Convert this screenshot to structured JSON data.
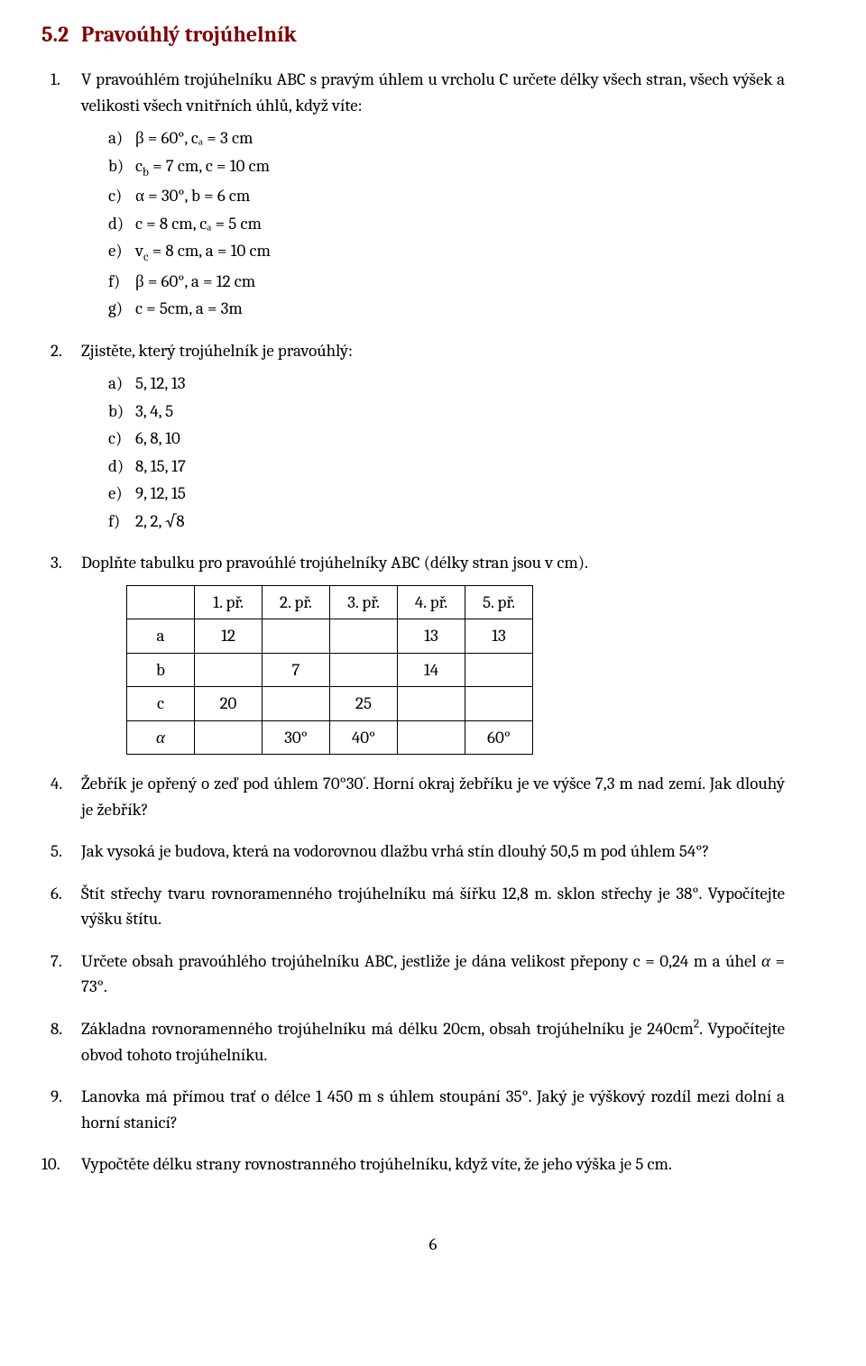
{
  "heading": {
    "number": "5.2",
    "title": "Pravoúhlý trojúhelník"
  },
  "q1": {
    "num": "1.",
    "text": "V pravoúhlém trojúhelníku ABC s pravým úhlem u vrcholu C určete délky všech stran, všech výšek a velikosti všech vnitřních úhlů, když víte:",
    "items": {
      "a": "β = 60°, cₐ = 3 cm",
      "b": "c_b = 7 cm, c = 10 cm",
      "c": "α = 30°, b = 6 cm",
      "d": "c = 8 cm, cₐ = 5 cm",
      "e": "v_c = 8 cm, a = 10 cm",
      "f": "β = 60°, a = 12 cm",
      "g": "c = 5cm, a = 3m"
    }
  },
  "q2": {
    "num": "2.",
    "text": "Zjistěte, který trojúhelník je pravoúhlý:",
    "items": {
      "a": "5, 12, 13",
      "b": "3, 4, 5",
      "c": "6, 8, 10",
      "d": "8, 15, 17",
      "e": "9, 12, 15",
      "f": "2, 2, √8"
    }
  },
  "q3": {
    "num": "3.",
    "text": "Doplňte tabulku pro pravoúhlé trojúhelníky ABC (délky stran jsou v cm).",
    "table": {
      "headers": [
        "",
        "1. př.",
        "2. př.",
        "3. př.",
        "4. př.",
        "5. př."
      ],
      "rows": [
        [
          "a",
          "12",
          "",
          "",
          "13",
          "13"
        ],
        [
          "b",
          "",
          "7",
          "",
          "14",
          ""
        ],
        [
          "c",
          "20",
          "",
          "25",
          "",
          ""
        ],
        [
          "α",
          "",
          "30°",
          "40°",
          "",
          "60°"
        ]
      ],
      "row_label_italic": [
        false,
        false,
        false,
        true
      ]
    }
  },
  "q4": {
    "num": "4.",
    "text": "Žebřík je opřený o zeď pod úhlem 70°30´. Horní okraj žebříku je ve výšce 7,3 m nad zemí. Jak dlouhý je žebřík?"
  },
  "q5": {
    "num": "5.",
    "text": "Jak vysoká je budova, která na vodorovnou dlažbu vrhá stín dlouhý 50,5 m pod úhlem 54°?"
  },
  "q6": {
    "num": "6.",
    "text": "Štít střechy tvaru rovnoramenného trojúhelníku má šířku 12,8 m. sklon střechy je 38°. Vypočítejte výšku štítu."
  },
  "q7": {
    "num": "7.",
    "text_pre": "Určete obsah pravoúhlého trojúhelníku ABC, jestliže je dána velikost přepony c = 0,24 m a úhel ",
    "alpha": "α",
    "text_post": " = 73°."
  },
  "q8": {
    "num": "8.",
    "text_pre": "Základna rovnoramenného trojúhelníku má délku 20cm, obsah trojúhelníku je 240cm",
    "sup": "2",
    "text_post": ". Vypočítejte obvod tohoto trojúhelníku."
  },
  "q9": {
    "num": "9.",
    "text": "Lanovka má přímou trať o délce 1 450 m s úhlem stoupání 35°. Jaký je výškový rozdíl mezi dolní a horní stanicí?"
  },
  "q10": {
    "num": "10.",
    "text": "Vypočtěte délku strany rovnostranného trojúhelníku, když víte, že jeho výška je 5 cm."
  },
  "pageno": "6",
  "letters": [
    "a)",
    "b)",
    "c)",
    "d)",
    "e)",
    "f)",
    "g)"
  ]
}
